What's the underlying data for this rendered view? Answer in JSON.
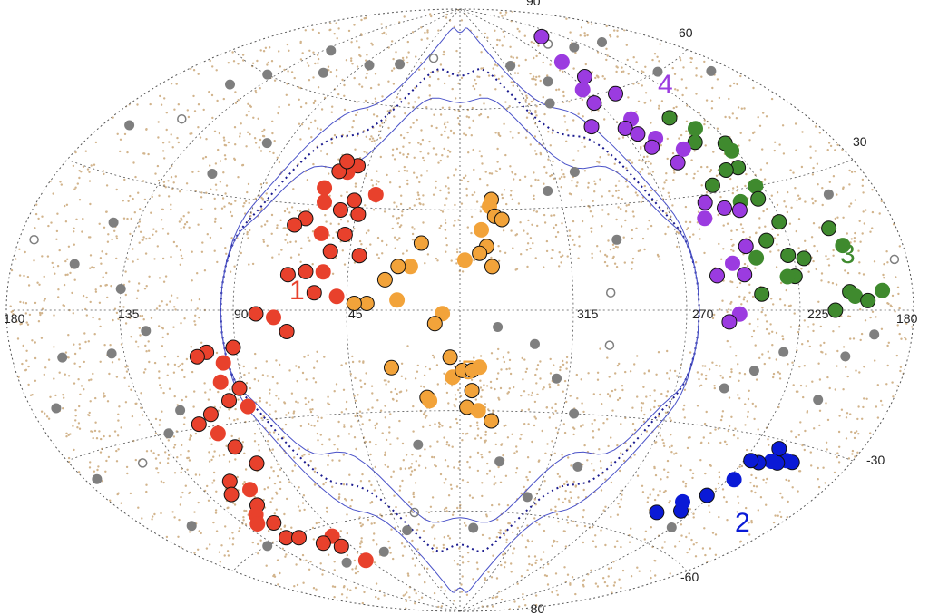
{
  "chart_data": {
    "type": "scatter",
    "title": "",
    "projection": "aitoff",
    "coordinate_system": "galactic",
    "lon_tick_labels": [
      "180",
      "135",
      "90",
      "45",
      "315",
      "270",
      "225",
      "180"
    ],
    "lat_tick_labels": [
      "60",
      "30",
      "-30",
      "-60",
      "-80"
    ],
    "top_tick_label": "90",
    "grid": true,
    "colors": {
      "background_dots": "#d2b48c",
      "grey_sources": "#7f7f7f",
      "group1": "#e8412c",
      "group2": "#0a1ad6",
      "group3": "#3f8a2e",
      "group4": "#9b3be0",
      "group5": "#f2a33a",
      "grid": "#555555",
      "galactic_plane_contour": "#4a52c8",
      "dotted_contour": "#1b1b8f"
    },
    "group_labels": [
      {
        "id": "1",
        "color": "#e8412c"
      },
      {
        "id": "2",
        "color": "#0a1ad6"
      },
      {
        "id": "3",
        "color": "#3f8a2e"
      },
      {
        "id": "4",
        "color": "#9b3be0"
      },
      {
        "id": "5",
        "color": "#f2a33a"
      }
    ],
    "series": [
      {
        "id": "1",
        "color": "#e8412c",
        "points": [
          [
            50,
            42
          ],
          [
            54,
            40
          ],
          [
            58,
            40
          ],
          [
            56,
            43
          ],
          [
            62,
            35
          ],
          [
            47,
            32
          ],
          [
            52,
            29
          ],
          [
            60,
            31
          ],
          [
            66,
            26
          ],
          [
            70,
            24
          ],
          [
            38,
            34
          ],
          [
            44,
            28
          ],
          [
            48,
            22
          ],
          [
            58,
            22
          ],
          [
            53,
            17
          ],
          [
            41,
            16
          ],
          [
            55,
            11
          ],
          [
            62,
            11
          ],
          [
            69,
            10
          ],
          [
            49,
            4
          ],
          [
            58,
            5
          ],
          [
            81,
            -1
          ],
          [
            74,
            -2
          ],
          [
            69,
            -6
          ],
          [
            91,
            -10
          ],
          [
            96,
            -14
          ],
          [
            102,
            -11
          ],
          [
            106,
            -12
          ],
          [
            99,
            -19
          ],
          [
            92,
            -21
          ],
          [
            98,
            -24
          ],
          [
            91,
            -26
          ],
          [
            108,
            -27
          ],
          [
            115,
            -29
          ],
          [
            109,
            -32
          ],
          [
            105,
            -36
          ],
          [
            100,
            -41
          ],
          [
            113,
            -47
          ],
          [
            117,
            -51
          ],
          [
            119,
            -56
          ],
          [
            123,
            -53
          ],
          [
            119,
            -44
          ],
          [
            124,
            -47
          ],
          [
            128,
            -55
          ],
          [
            123,
            -60
          ],
          [
            116,
            -61
          ],
          [
            95,
            -63
          ],
          [
            106,
            -64
          ],
          [
            97,
            -66
          ],
          [
            93,
            -71
          ]
        ]
      },
      {
        "id": "2",
        "color": "#0a1ad6",
        "points": [
          [
            204,
            -34
          ],
          [
            207,
            -34
          ],
          [
            210,
            -35
          ],
          [
            214,
            -32
          ],
          [
            213,
            -35
          ],
          [
            218,
            -36
          ],
          [
            222,
            -36
          ],
          [
            222,
            -41
          ],
          [
            227,
            -46
          ],
          [
            231,
            -51
          ],
          [
            235,
            -49
          ],
          [
            242,
            -53
          ]
        ]
      },
      {
        "id": "3",
        "color": "#3f8a2e",
        "points": [
          [
            240,
            43
          ],
          [
            234,
            46
          ],
          [
            241,
            50
          ],
          [
            227,
            41
          ],
          [
            227,
            39
          ],
          [
            230,
            35
          ],
          [
            236,
            35
          ],
          [
            228,
            30
          ],
          [
            246,
            32
          ],
          [
            230,
            27
          ],
          [
            238,
            27
          ],
          [
            226,
            21
          ],
          [
            234,
            17
          ],
          [
            240,
            13
          ],
          [
            227,
            13
          ],
          [
            226,
            8
          ],
          [
            229,
            8
          ],
          [
            240,
            4
          ],
          [
            221,
            12
          ],
          [
            204,
            14
          ],
          [
            207,
            18
          ],
          [
            205,
            4
          ],
          [
            203,
            3
          ],
          [
            211,
            0
          ],
          [
            198,
            2
          ],
          [
            192,
            4
          ]
        ]
      },
      {
        "id": "4",
        "color": "#9b3be0",
        "points": [
          [
            242,
            77
          ],
          [
            263,
            70
          ],
          [
            261,
            65
          ],
          [
            255,
            59
          ],
          [
            272,
            62
          ],
          [
            273,
            58
          ],
          [
            285,
            52
          ],
          [
            261,
            52
          ],
          [
            268,
            50
          ],
          [
            264,
            48
          ],
          [
            257,
            46
          ],
          [
            262,
            44
          ],
          [
            255,
            39
          ],
          [
            248,
            42
          ],
          [
            253,
            28
          ],
          [
            246,
            26
          ],
          [
            256,
            24
          ],
          [
            240,
            25
          ],
          [
            243,
            16
          ],
          [
            250,
            12
          ],
          [
            246,
            9
          ],
          [
            257,
            9
          ],
          [
            249,
            -1
          ],
          [
            253,
            -3
          ]
        ]
      },
      {
        "id": "5",
        "color": "#f2a33a",
        "points": [
          [
            346,
            33
          ],
          [
            347,
            31
          ],
          [
            345,
            28
          ],
          [
            342,
            27
          ],
          [
            351,
            24
          ],
          [
            349,
            19
          ],
          [
            352,
            17
          ],
          [
            358,
            15
          ],
          [
            347,
            13
          ],
          [
            16,
            20
          ],
          [
            20,
            13
          ],
          [
            25,
            13
          ],
          [
            30,
            9
          ],
          [
            25,
            3
          ],
          [
            37,
            2
          ],
          [
            42,
            2
          ],
          [
            7,
            -1
          ],
          [
            10,
            -4
          ],
          [
            4,
            -14
          ],
          [
            3,
            -20
          ],
          [
            359,
            -18
          ],
          [
            355,
            -18
          ],
          [
            352,
            -17
          ],
          [
            28,
            -17
          ],
          [
            14,
            -26
          ],
          [
            13,
            -27
          ],
          [
            355,
            -24
          ],
          [
            357,
            -29
          ],
          [
            352,
            -30
          ],
          [
            346,
            -33
          ]
        ]
      },
      {
        "id": "grey",
        "color": "#7f7f7f",
        "points": [
          [
            174,
            14
          ],
          [
            169,
            40
          ],
          [
            150,
            55
          ],
          [
            140,
            60
          ],
          [
            110,
            65
          ],
          [
            85,
            70
          ],
          [
            60,
            72
          ],
          [
            30,
            75
          ],
          [
            310,
            72
          ],
          [
            290,
            66
          ],
          [
            300,
            60
          ],
          [
            210,
            70
          ],
          [
            190,
            55
          ],
          [
            235,
            72
          ],
          [
            250,
            75
          ],
          [
            145,
            20
          ],
          [
            155,
            10
          ],
          [
            160,
            -10
          ],
          [
            170,
            -20
          ],
          [
            140,
            -10
          ],
          [
            130,
            -30
          ],
          [
            150,
            -35
          ],
          [
            120,
            -25
          ],
          [
            160,
            -50
          ],
          [
            140,
            -60
          ],
          [
            110,
            -70
          ],
          [
            70,
            -70
          ],
          [
            40,
            -65
          ],
          [
            30,
            -60
          ],
          [
            350,
            -65
          ],
          [
            320,
            -55
          ],
          [
            300,
            -45
          ],
          [
            310,
            -30
          ],
          [
            320,
            -20
          ],
          [
            330,
            -10
          ],
          [
            300,
            5
          ],
          [
            295,
            20
          ],
          [
            305,
            40
          ],
          [
            320,
            35
          ],
          [
            200,
            25
          ],
          [
            205,
            -10
          ],
          [
            210,
            -20
          ],
          [
            185,
            10
          ],
          [
            195,
            -5
          ],
          [
            230,
            -10
          ],
          [
            240,
            -15
          ],
          [
            250,
            -20
          ],
          [
            225,
            -55
          ],
          [
            215,
            60
          ],
          [
            150,
            45
          ],
          [
            130,
            70
          ],
          [
            100,
            45
          ],
          [
            115,
            35
          ],
          [
            20,
            -40
          ],
          [
            340,
            -45
          ],
          [
            345,
            -5
          ],
          [
            300,
            -10
          ],
          [
            125,
            -5
          ],
          [
            135,
            5
          ],
          [
            175,
            -35
          ]
        ]
      }
    ]
  }
}
